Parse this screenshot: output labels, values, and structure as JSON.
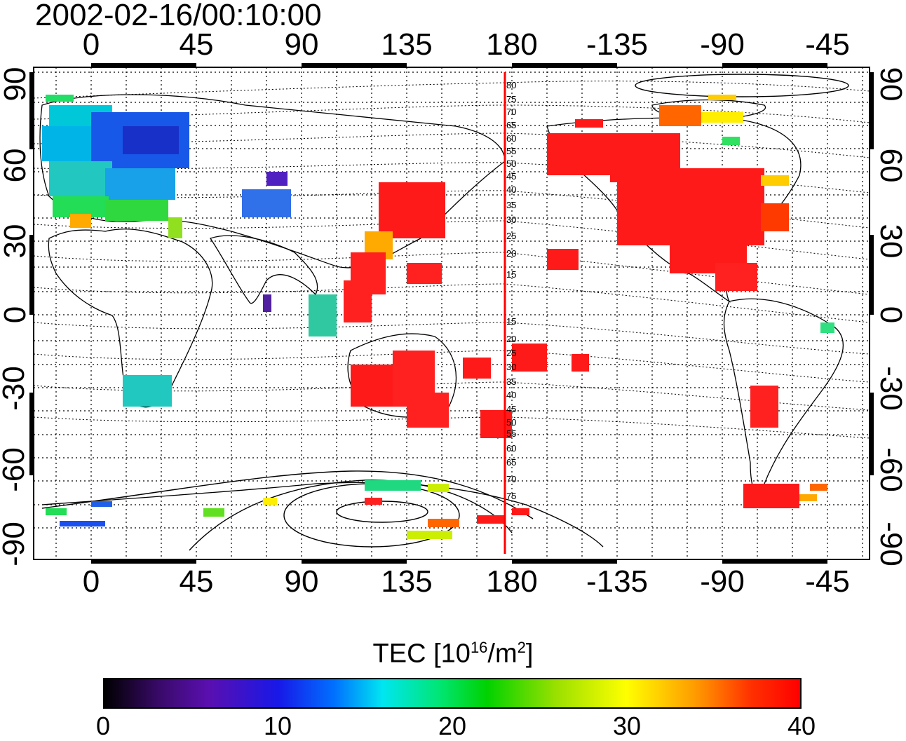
{
  "timestamp": "2002-02-16/00:10:00",
  "top_axis_ticks": [
    "0",
    "45",
    "90",
    "135",
    "180",
    "-135",
    "-90",
    "-45"
  ],
  "bottom_axis_ticks": [
    "0",
    "45",
    "90",
    "135",
    "180",
    "-135",
    "-90",
    "-45"
  ],
  "left_axis_ticks": [
    "90",
    "60",
    "30",
    "0",
    "-30",
    "-60",
    "-90"
  ],
  "right_axis_ticks": [
    "90",
    "60",
    "30",
    "0",
    "-30",
    "-60",
    "-90"
  ],
  "meridian_labels": [
    "80",
    "75",
    "70",
    "65",
    "60",
    "55",
    "50",
    "45",
    "40",
    "35",
    "30",
    "25",
    "20",
    "15",
    "15",
    "20",
    "25",
    "30",
    "35",
    "40",
    "45",
    "50",
    "55",
    "60",
    "65",
    "70",
    "75"
  ],
  "colorbar": {
    "title_prefix": "TEC  [10",
    "title_sup1": "16",
    "title_mid": "/m",
    "title_sup2": "2",
    "title_suffix": "]",
    "ticks": [
      "0",
      "10",
      "20",
      "30",
      "40"
    ],
    "range": [
      0,
      40
    ]
  },
  "colors": {
    "highlight_meridian": "#ff0000",
    "high_tec": "#ff1a1a"
  }
}
